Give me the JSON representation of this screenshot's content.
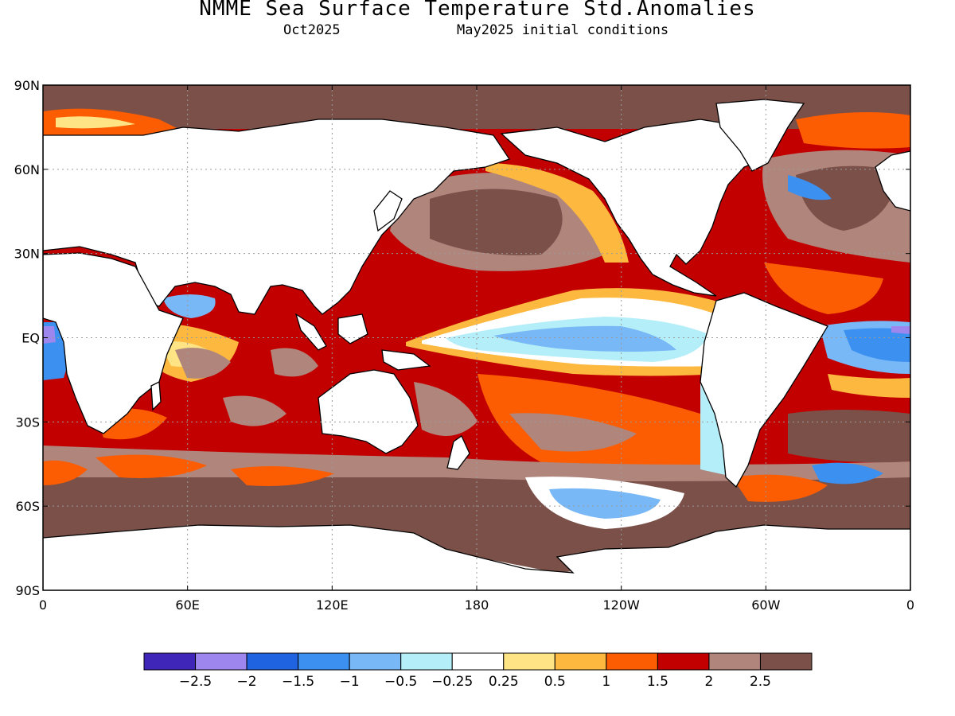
{
  "title": "NMME Sea Surface Temperature Std.Anomalies",
  "subtitle_left": "Oct2025",
  "subtitle_right": "May2025 initial conditions",
  "lat_labels": [
    "90N",
    "60N",
    "30N",
    "EQ",
    "30S",
    "60S",
    "90S"
  ],
  "lon_labels": [
    "0",
    "60E",
    "120E",
    "180",
    "120W",
    "60W",
    "0"
  ],
  "colorbar": {
    "colors": [
      "#3f25b8",
      "#9d86ee",
      "#1f63e0",
      "#3b90f0",
      "#78b8f6",
      "#b4eef8",
      "#ffffff",
      "#fee484",
      "#fdb840",
      "#fc5d02",
      "#c20000",
      "#b0857c",
      "#7b5049"
    ],
    "labels": [
      "−2.5",
      "−2",
      "−1.5",
      "−1",
      "−0.5",
      "−0.25",
      "0.25",
      "0.5",
      "1",
      "1.5",
      "2",
      "2.5"
    ]
  },
  "colors": {
    "land": "#ffffff",
    "coast": "#000000",
    "grid": "#9a9a9a"
  }
}
